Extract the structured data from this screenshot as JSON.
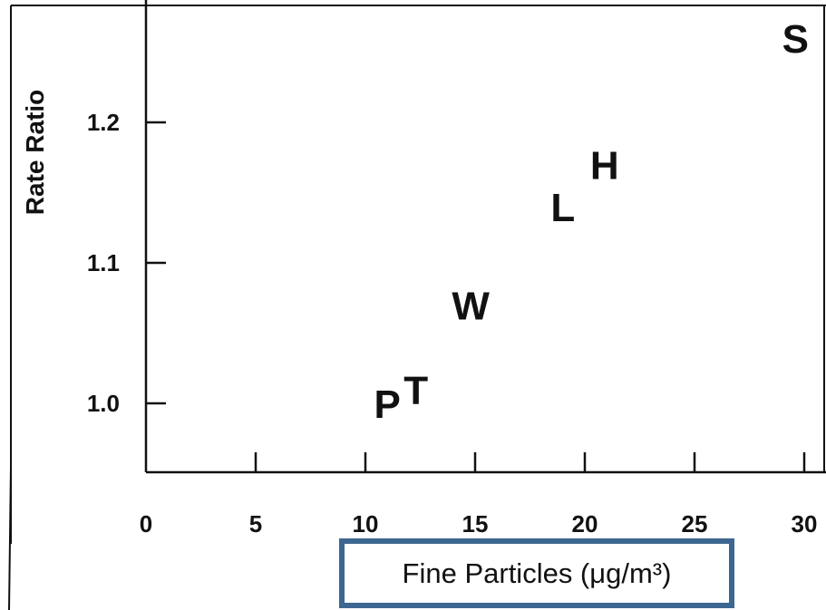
{
  "chart_data": {
    "type": "scatter",
    "title": "",
    "xlabel": "Fine Particles (μg/m³)",
    "ylabel": "Rate Ratio",
    "xlim": [
      0,
      31
    ],
    "ylim": [
      0.95,
      1.27
    ],
    "x_ticks": [
      0,
      5,
      10,
      15,
      20,
      25,
      30
    ],
    "x_tick_labels": [
      "0",
      "5",
      "10",
      "15",
      "20",
      "25",
      "30"
    ],
    "y_ticks": [
      1.0,
      1.1,
      1.2
    ],
    "y_tick_labels": [
      "1.0",
      "1.1",
      "1.2"
    ],
    "grid": false,
    "points": [
      {
        "label": "P",
        "x": 11.0,
        "y": 1.0
      },
      {
        "label": "T",
        "x": 12.3,
        "y": 1.01
      },
      {
        "label": "W",
        "x": 14.8,
        "y": 1.07
      },
      {
        "label": "L",
        "x": 19.0,
        "y": 1.14
      },
      {
        "label": "H",
        "x": 20.9,
        "y": 1.17
      },
      {
        "label": "S",
        "x": 29.6,
        "y": 1.26
      }
    ]
  },
  "colors": {
    "axis": "#111111",
    "xlabel_box_border": "#3d6791"
  }
}
